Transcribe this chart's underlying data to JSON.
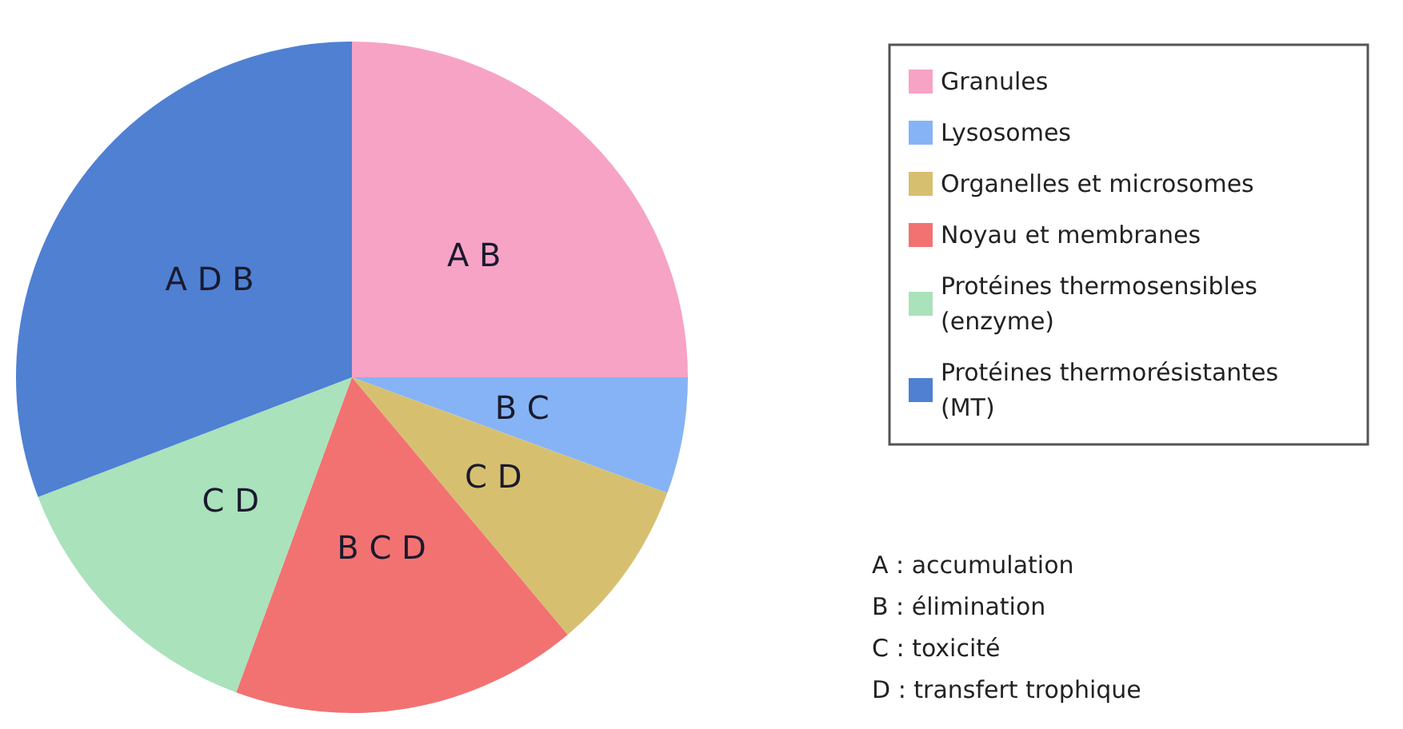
{
  "chart_data": {
    "type": "pie",
    "categories": [
      "Granules",
      "Lysosomes",
      "Organelles et microsomes",
      "Noyau et membranes",
      "Protéines thermosensibles (enzyme)",
      "Protéines thermorésistantes (MT)"
    ],
    "values": [
      25,
      5.6,
      8.3,
      16.7,
      13.6,
      30.8
    ],
    "colors": [
      "#f7a3c6",
      "#86b3f5",
      "#d6c070",
      "#f27272",
      "#a9e2bb",
      "#4f80d2"
    ],
    "value_labels": [
      "A B",
      "B C",
      "C D",
      "B C D",
      "C D",
      "A D B"
    ],
    "legend": "right",
    "annotations": [
      "A : accumulation",
      "B : élimination",
      "C : toxicité",
      "D : transfert trophique"
    ]
  }
}
